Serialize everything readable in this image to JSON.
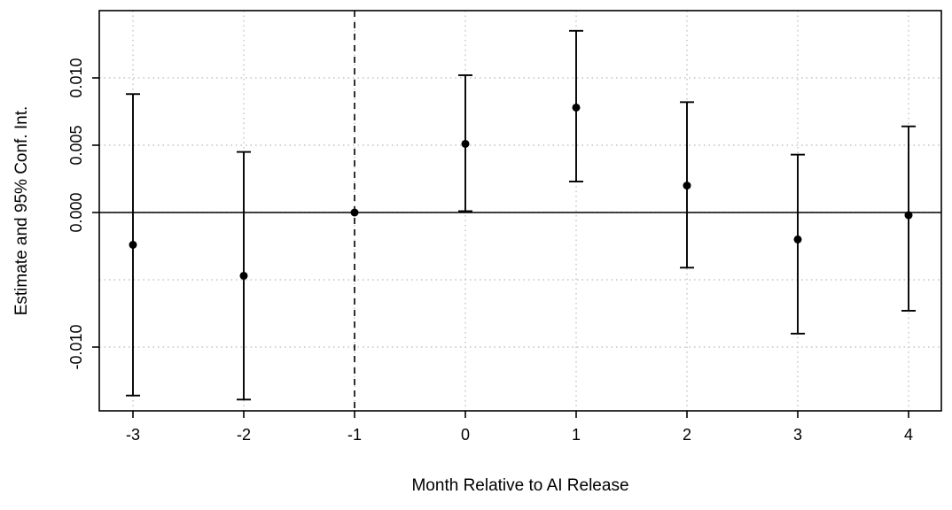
{
  "chart_data": {
    "type": "scatter",
    "title": "",
    "xlabel": "Month Relative to AI Release",
    "ylabel": "Estimate and 95% Conf. Int.",
    "x": [
      -3,
      -2,
      -1,
      0,
      1,
      2,
      3,
      4
    ],
    "x_tick_labels": [
      "-3",
      "-2",
      "-1",
      "0",
      "1",
      "2",
      "3",
      "4"
    ],
    "estimates": [
      -0.0024,
      -0.0047,
      0.0,
      0.0051,
      0.0078,
      0.002,
      -0.002,
      -0.0002
    ],
    "ci_lower": [
      -0.0136,
      -0.0139,
      null,
      0.0001,
      0.0023,
      -0.0041,
      -0.009,
      -0.0073
    ],
    "ci_upper": [
      0.0088,
      0.0045,
      null,
      0.0102,
      0.0135,
      0.0082,
      0.0043,
      0.0064
    ],
    "reference_month": -1,
    "zero_line": 0,
    "y_ticks": [
      -0.01,
      0.0,
      0.005,
      0.01
    ],
    "y_grid": [
      -0.01,
      -0.005,
      0.0,
      0.005,
      0.01
    ],
    "ylim": [
      -0.0148,
      0.015
    ],
    "xlim": [
      -3.3,
      4.3
    ],
    "grid": true,
    "legend": "none",
    "colors": {
      "points": "#000000",
      "gridline": "#c3c3c3"
    }
  }
}
